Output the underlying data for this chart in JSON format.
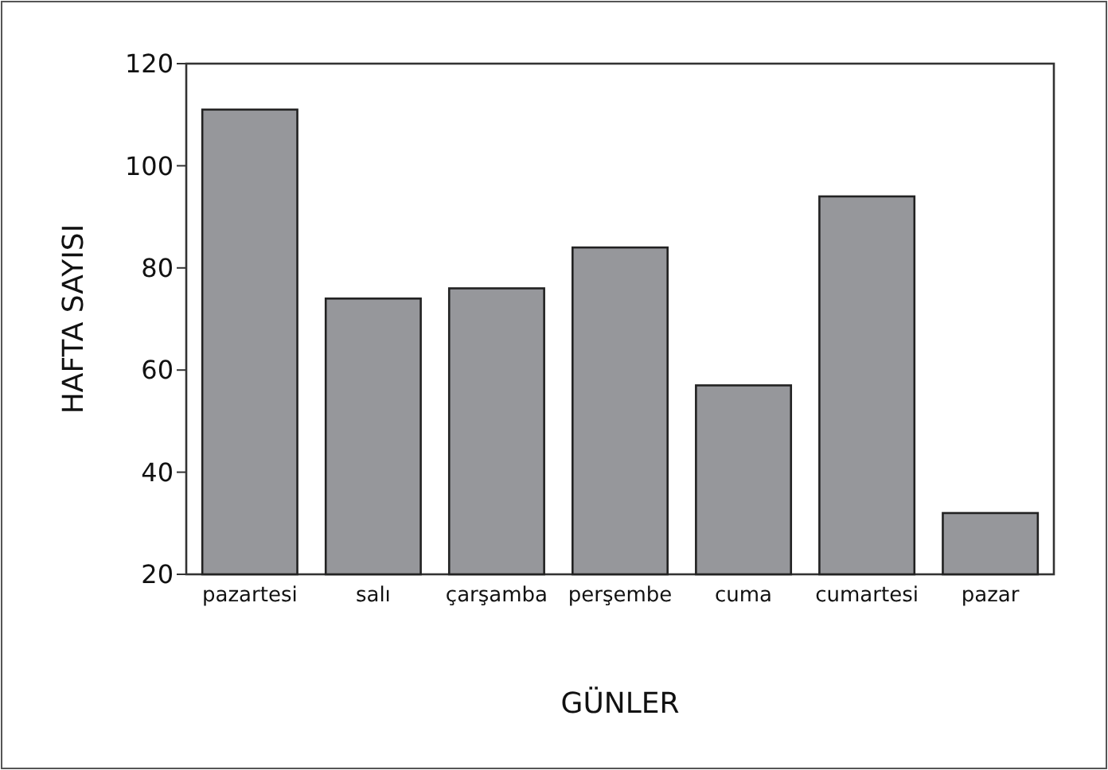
{
  "chart_data": {
    "type": "bar",
    "xlabel": "GÜNLER",
    "ylabel": "HAFTA SAYISI",
    "categories": [
      "pazartesi",
      "salı",
      "çarşamba",
      "perşembe",
      "cuma",
      "cumartesi",
      "pazar"
    ],
    "values": [
      111,
      74,
      76,
      84,
      57,
      94,
      32
    ],
    "color": "#96979b",
    "ylim": [
      20,
      120
    ],
    "yticks": [
      20,
      40,
      60,
      80,
      100,
      120
    ],
    "grid": false
  }
}
